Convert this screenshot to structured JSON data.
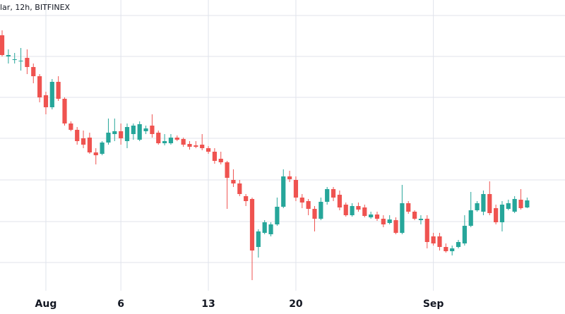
{
  "chart_data": {
    "type": "candlestick",
    "title": "lar, 12h, BITFINEX",
    "up_color": "#26a69a",
    "down_color": "#ef5350",
    "grid": true,
    "xlim": [
      -3.67,
      41.53
    ],
    "ylim": [
      0,
      445
    ],
    "xticks": [
      {
        "value": 0,
        "label": "Aug"
      },
      6,
      13,
      20,
      {
        "value": 31,
        "label": "Sep"
      }
    ],
    "ygrid": [
      423,
      365,
      307,
      249,
      190,
      131,
      73
    ],
    "x": [
      -3.5,
      -3,
      -2.5,
      -2,
      -1.5,
      -1,
      -0.5,
      0,
      0.5,
      1,
      1.5,
      2,
      2.5,
      3,
      3.5,
      4,
      4.5,
      5,
      5.5,
      6,
      6.5,
      7,
      7.5,
      8,
      8.5,
      9,
      9.5,
      10,
      10.5,
      11,
      11.5,
      12,
      12.5,
      13,
      13.5,
      14,
      14.5,
      15,
      15.5,
      16,
      16.5,
      17,
      17.5,
      18,
      18.5,
      19,
      19.5,
      20,
      20.5,
      21,
      21.5,
      22,
      22.5,
      23,
      23.5,
      24,
      24.5,
      25,
      25.5,
      26,
      26.5,
      27,
      27.5,
      28,
      28.5,
      29,
      29.5,
      30,
      30.5,
      31,
      31.5,
      32,
      32.5,
      33,
      33.5,
      34,
      34.5,
      35,
      35.5,
      36,
      36.5,
      37,
      37.5,
      38,
      38.5
    ],
    "open": [
      395,
      365,
      360,
      358,
      363,
      350,
      337,
      310,
      293,
      329,
      305,
      270,
      261,
      249,
      250,
      229,
      227,
      243,
      255,
      259,
      245,
      255,
      247,
      259,
      267,
      257,
      242,
      242,
      250,
      248,
      241,
      239,
      240,
      235,
      230,
      220,
      215,
      190,
      185,
      167,
      163,
      95,
      115,
      113,
      127,
      152,
      195,
      190,
      165,
      160,
      149,
      135,
      159,
      177,
      169,
      155,
      140,
      153,
      151,
      137,
      141,
      135,
      129,
      133,
      115,
      157,
      145,
      133,
      135,
      110,
      110,
      95,
      89,
      95,
      100,
      125,
      147,
      145,
      170,
      150,
      130,
      149,
      145,
      162,
      151
    ],
    "high": [
      402,
      375,
      370,
      377,
      375,
      355,
      340,
      315,
      333,
      337,
      307,
      273,
      265,
      260,
      257,
      235,
      245,
      277,
      277,
      270,
      270,
      270,
      273,
      267,
      283,
      260,
      255,
      255,
      253,
      250,
      245,
      245,
      255,
      238,
      235,
      230,
      217,
      205,
      190,
      170,
      165,
      120,
      133,
      130,
      165,
      205,
      203,
      195,
      170,
      163,
      153,
      165,
      180,
      180,
      175,
      158,
      157,
      158,
      155,
      145,
      145,
      140,
      140,
      137,
      183,
      160,
      147,
      140,
      140,
      115,
      115,
      100,
      97,
      105,
      140,
      173,
      160,
      175,
      188,
      155,
      160,
      162,
      167,
      177,
      165
    ],
    "low": [
      365,
      355,
      355,
      345,
      340,
      327,
      300,
      283,
      290,
      302,
      267,
      259,
      240,
      235,
      227,
      212,
      225,
      240,
      245,
      240,
      235,
      247,
      245,
      255,
      250,
      240,
      239,
      240,
      245,
      237,
      233,
      235,
      232,
      227,
      213,
      212,
      149,
      180,
      167,
      153,
      48,
      80,
      113,
      110,
      125,
      150,
      187,
      160,
      150,
      140,
      117,
      133,
      155,
      160,
      147,
      138,
      138,
      145,
      137,
      135,
      132,
      123,
      127,
      113,
      113,
      142,
      133,
      127,
      93,
      97,
      90,
      87,
      83,
      93,
      97,
      123,
      145,
      140,
      140,
      127,
      117,
      147,
      143,
      148,
      150
    ],
    "close": [
      367,
      367,
      361,
      359,
      350,
      337,
      307,
      293,
      329,
      305,
      270,
      261,
      245,
      240,
      229,
      225,
      243,
      257,
      259,
      249,
      265,
      267,
      269,
      263,
      255,
      242,
      245,
      250,
      247,
      240,
      237,
      237,
      235,
      230,
      217,
      215,
      193,
      185,
      170,
      160,
      90,
      117,
      130,
      127,
      152,
      195,
      191,
      165,
      158,
      149,
      135,
      159,
      177,
      165,
      151,
      140,
      153,
      148,
      139,
      141,
      135,
      127,
      134,
      115,
      157,
      145,
      135,
      135,
      102,
      100,
      95,
      89,
      93,
      102,
      125,
      147,
      157,
      170,
      143,
      130,
      155,
      157,
      163,
      150,
      161
    ]
  }
}
